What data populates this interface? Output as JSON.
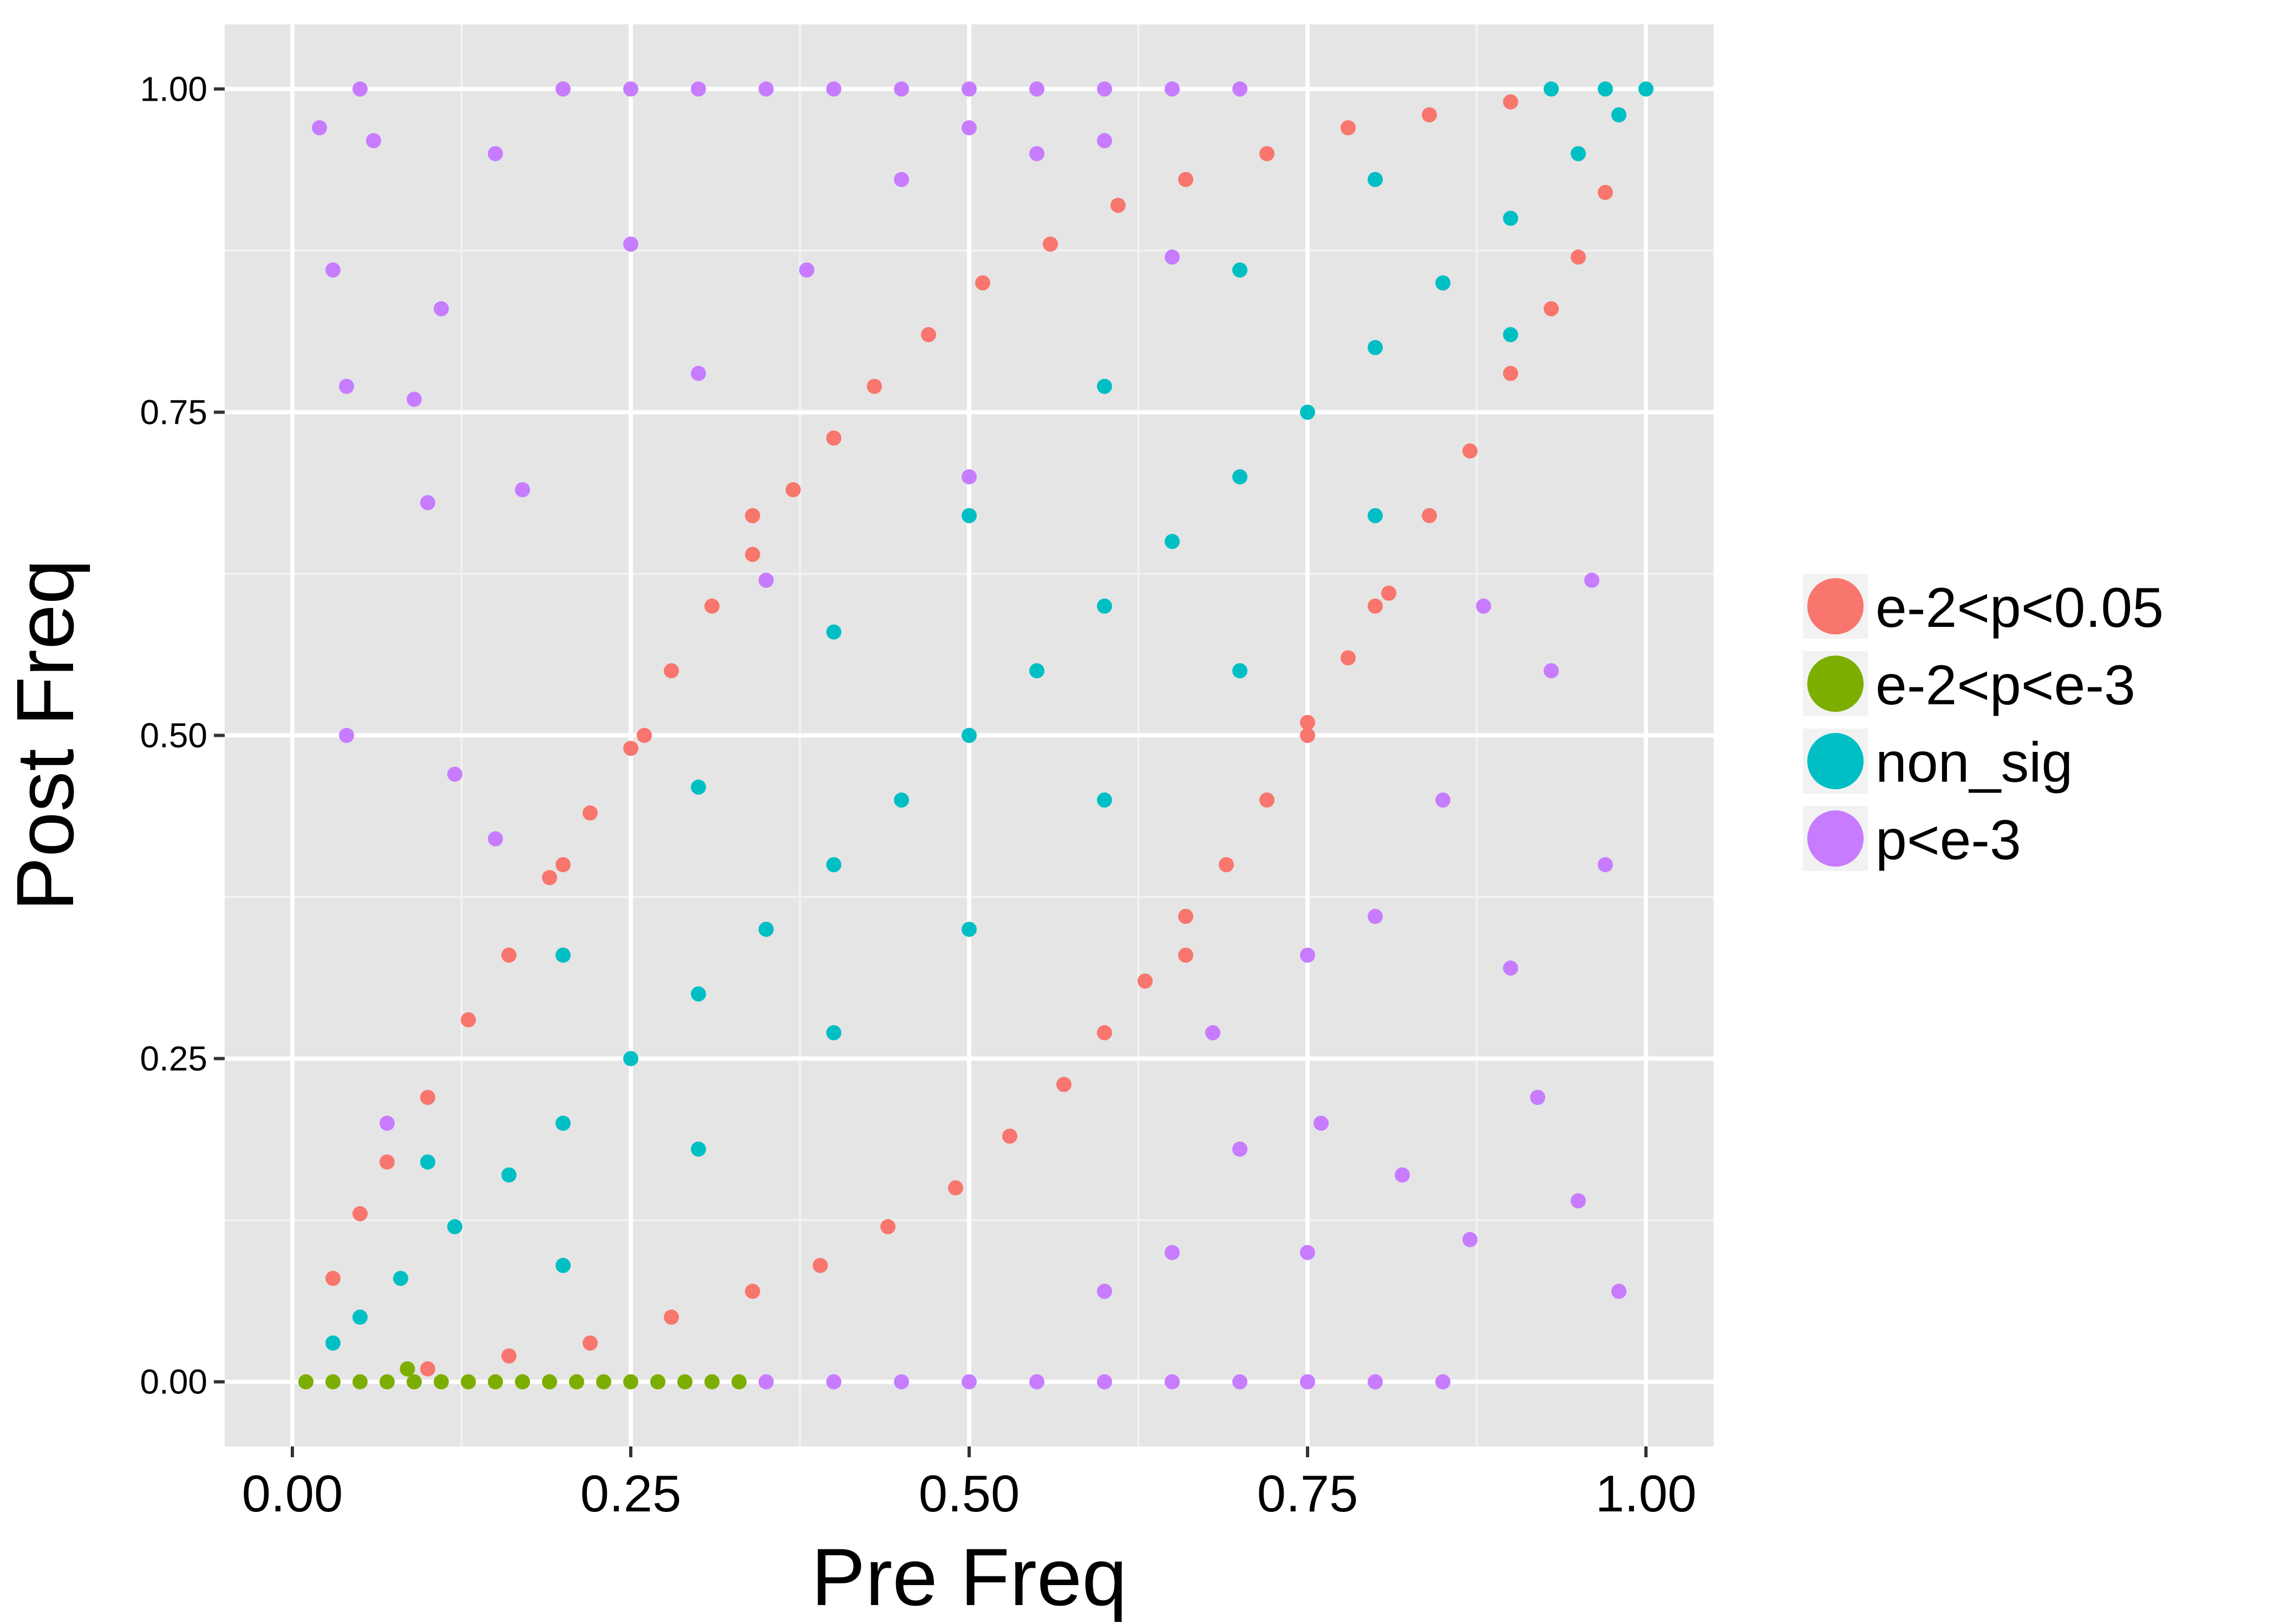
{
  "chart_data": {
    "type": "scatter",
    "xlabel": "Pre Freq",
    "ylabel": "Post Freq",
    "xlim": [
      -0.05,
      1.05
    ],
    "ylim": [
      -0.05,
      1.05
    ],
    "xticks": [
      "0.00",
      "0.25",
      "0.50",
      "0.75",
      "1.00"
    ],
    "yticks": [
      "0.00",
      "0.25",
      "0.50",
      "0.75",
      "1.00"
    ],
    "x_tick_values": [
      0,
      0.25,
      0.5,
      0.75,
      1
    ],
    "y_tick_values": [
      0,
      0.25,
      0.5,
      0.75,
      1
    ],
    "grid": true,
    "background": "#e5e5e5",
    "legend_position": "right",
    "series": [
      {
        "name": "e-2<p<0.05",
        "color": "#F8766D",
        "points": [
          [
            0.03,
            0.08
          ],
          [
            0.05,
            0.13
          ],
          [
            0.07,
            0.17
          ],
          [
            0.1,
            0.22
          ],
          [
            0.13,
            0.28
          ],
          [
            0.16,
            0.33
          ],
          [
            0.19,
            0.39
          ],
          [
            0.22,
            0.44
          ],
          [
            0.25,
            0.49
          ],
          [
            0.28,
            0.55
          ],
          [
            0.31,
            0.6
          ],
          [
            0.34,
            0.64
          ],
          [
            0.37,
            0.69
          ],
          [
            0.4,
            0.73
          ],
          [
            0.43,
            0.77
          ],
          [
            0.47,
            0.81
          ],
          [
            0.51,
            0.85
          ],
          [
            0.56,
            0.88
          ],
          [
            0.61,
            0.91
          ],
          [
            0.66,
            0.93
          ],
          [
            0.72,
            0.95
          ],
          [
            0.78,
            0.97
          ],
          [
            0.84,
            0.98
          ],
          [
            0.9,
            0.99
          ],
          [
            0.97,
            0.92
          ],
          [
            0.95,
            0.87
          ],
          [
            0.93,
            0.83
          ],
          [
            0.9,
            0.78
          ],
          [
            0.87,
            0.72
          ],
          [
            0.84,
            0.67
          ],
          [
            0.81,
            0.61
          ],
          [
            0.78,
            0.56
          ],
          [
            0.75,
            0.51
          ],
          [
            0.72,
            0.45
          ],
          [
            0.69,
            0.4
          ],
          [
            0.66,
            0.36
          ],
          [
            0.63,
            0.31
          ],
          [
            0.6,
            0.27
          ],
          [
            0.57,
            0.23
          ],
          [
            0.53,
            0.19
          ],
          [
            0.49,
            0.15
          ],
          [
            0.44,
            0.12
          ],
          [
            0.39,
            0.09
          ],
          [
            0.34,
            0.07
          ],
          [
            0.28,
            0.05
          ],
          [
            0.22,
            0.03
          ],
          [
            0.16,
            0.02
          ],
          [
            0.1,
            0.01
          ],
          [
            0.26,
            0.5
          ],
          [
            0.75,
            0.5
          ],
          [
            0.34,
            0.67
          ],
          [
            0.66,
            0.33
          ],
          [
            0.2,
            0.4
          ],
          [
            0.8,
            0.6
          ]
        ]
      },
      {
        "name": "e-2<p<e-3",
        "color": "#7CAE00",
        "points": [
          [
            0.01,
            0.0
          ],
          [
            0.03,
            0.0
          ],
          [
            0.05,
            0.0
          ],
          [
            0.07,
            0.0
          ],
          [
            0.09,
            0.0
          ],
          [
            0.11,
            0.0
          ],
          [
            0.13,
            0.0
          ],
          [
            0.15,
            0.0
          ],
          [
            0.17,
            0.0
          ],
          [
            0.19,
            0.0
          ],
          [
            0.21,
            0.0
          ],
          [
            0.23,
            0.0
          ],
          [
            0.25,
            0.0
          ],
          [
            0.27,
            0.0
          ],
          [
            0.29,
            0.0
          ],
          [
            0.31,
            0.0
          ],
          [
            0.33,
            0.0
          ],
          [
            0.085,
            0.01
          ]
        ]
      },
      {
        "name": "non_sig",
        "color": "#00BFC4",
        "points": [
          [
            0.03,
            0.03
          ],
          [
            0.05,
            0.05
          ],
          [
            0.08,
            0.08
          ],
          [
            0.12,
            0.12
          ],
          [
            0.16,
            0.16
          ],
          [
            0.2,
            0.2
          ],
          [
            0.25,
            0.25
          ],
          [
            0.3,
            0.3
          ],
          [
            0.35,
            0.35
          ],
          [
            0.4,
            0.4
          ],
          [
            0.45,
            0.45
          ],
          [
            0.5,
            0.5
          ],
          [
            0.55,
            0.55
          ],
          [
            0.6,
            0.6
          ],
          [
            0.65,
            0.65
          ],
          [
            0.7,
            0.7
          ],
          [
            0.75,
            0.75
          ],
          [
            0.8,
            0.8
          ],
          [
            0.85,
            0.85
          ],
          [
            0.9,
            0.9
          ],
          [
            0.95,
            0.95
          ],
          [
            0.98,
            0.98
          ],
          [
            0.1,
            0.17
          ],
          [
            0.2,
            0.33
          ],
          [
            0.3,
            0.46
          ],
          [
            0.4,
            0.58
          ],
          [
            0.5,
            0.67
          ],
          [
            0.6,
            0.77
          ],
          [
            0.7,
            0.86
          ],
          [
            0.8,
            0.93
          ],
          [
            0.2,
            0.09
          ],
          [
            0.3,
            0.18
          ],
          [
            0.4,
            0.27
          ],
          [
            0.5,
            0.35
          ],
          [
            0.6,
            0.45
          ],
          [
            0.7,
            0.55
          ],
          [
            0.8,
            0.67
          ],
          [
            0.9,
            0.81
          ],
          [
            1.0,
            1.0
          ],
          [
            0.93,
            1.0
          ],
          [
            0.97,
            1.0
          ]
        ]
      },
      {
        "name": "p<e-3",
        "color": "#C77CFF",
        "points": [
          [
            0.02,
            0.97
          ],
          [
            0.05,
            1.0
          ],
          [
            0.03,
            0.86
          ],
          [
            0.06,
            0.96
          ],
          [
            0.04,
            0.77
          ],
          [
            0.09,
            0.76
          ],
          [
            0.11,
            0.83
          ],
          [
            0.15,
            0.95
          ],
          [
            0.2,
            1.0
          ],
          [
            0.25,
            1.0
          ],
          [
            0.3,
            1.0
          ],
          [
            0.35,
            1.0
          ],
          [
            0.4,
            1.0
          ],
          [
            0.45,
            1.0
          ],
          [
            0.5,
            1.0
          ],
          [
            0.55,
            1.0
          ],
          [
            0.6,
            1.0
          ],
          [
            0.65,
            1.0
          ],
          [
            0.7,
            1.0
          ],
          [
            0.12,
            0.47
          ],
          [
            0.1,
            0.68
          ],
          [
            0.17,
            0.69
          ],
          [
            0.25,
            0.88
          ],
          [
            0.3,
            0.78
          ],
          [
            0.38,
            0.86
          ],
          [
            0.45,
            0.93
          ],
          [
            0.5,
            0.97
          ],
          [
            0.55,
            0.95
          ],
          [
            0.6,
            0.96
          ],
          [
            0.04,
            0.5
          ],
          [
            0.07,
            0.2
          ],
          [
            0.15,
            0.42
          ],
          [
            0.35,
            0.62
          ],
          [
            0.35,
            0.0
          ],
          [
            0.4,
            0.0
          ],
          [
            0.45,
            0.0
          ],
          [
            0.5,
            0.0
          ],
          [
            0.55,
            0.0
          ],
          [
            0.6,
            0.0
          ],
          [
            0.65,
            0.0
          ],
          [
            0.7,
            0.0
          ],
          [
            0.75,
            0.0
          ],
          [
            0.8,
            0.0
          ],
          [
            0.85,
            0.0
          ],
          [
            0.97,
            0.4
          ],
          [
            0.9,
            0.32
          ],
          [
            0.98,
            0.07
          ],
          [
            0.95,
            0.14
          ],
          [
            0.87,
            0.11
          ],
          [
            0.82,
            0.16
          ],
          [
            0.75,
            0.1
          ],
          [
            0.7,
            0.18
          ],
          [
            0.65,
            0.1
          ],
          [
            0.6,
            0.07
          ],
          [
            0.92,
            0.22
          ],
          [
            0.96,
            0.62
          ],
          [
            0.93,
            0.55
          ],
          [
            0.85,
            0.45
          ],
          [
            0.8,
            0.36
          ],
          [
            0.88,
            0.6
          ],
          [
            0.76,
            0.2
          ],
          [
            0.68,
            0.27
          ],
          [
            0.5,
            0.7
          ],
          [
            0.65,
            0.87
          ],
          [
            0.75,
            0.33
          ]
        ]
      }
    ]
  }
}
